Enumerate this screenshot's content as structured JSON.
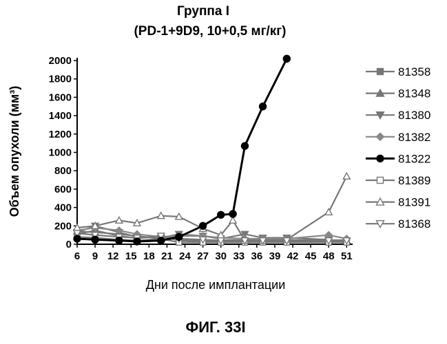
{
  "chart_data": {
    "type": "line",
    "title": "Группа I",
    "subtitle": "(PD-1+9D9, 10+0,5 мг/кг)",
    "xlabel": "Дни после имплантации",
    "ylabel": "Объем опухоли (мм³)",
    "figure_label": "ФИГ. 33I",
    "xlim": [
      6,
      52
    ],
    "ylim": [
      0,
      2000
    ],
    "x_ticks": [
      6,
      9,
      12,
      15,
      18,
      21,
      24,
      27,
      30,
      33,
      36,
      39,
      42,
      45,
      48,
      51
    ],
    "y_ticks": [
      0,
      200,
      400,
      600,
      800,
      1000,
      1200,
      1400,
      1600,
      1800,
      2000
    ],
    "grid": false,
    "legend_position": "right",
    "series": [
      {
        "name": "81358",
        "marker": "square",
        "filled": true,
        "color": "#777777",
        "x": [
          6,
          9,
          13,
          16,
          20,
          23,
          27,
          30,
          34,
          37,
          41,
          48,
          51
        ],
        "y": [
          110,
          150,
          90,
          65,
          85,
          40,
          30,
          30,
          30,
          30,
          30,
          30,
          30
        ]
      },
      {
        "name": "81348",
        "marker": "triangle-up",
        "filled": true,
        "color": "#777777",
        "x": [
          6,
          9,
          13,
          16,
          20,
          23,
          27,
          30,
          34,
          37,
          41,
          48,
          51
        ],
        "y": [
          140,
          130,
          110,
          90,
          60,
          55,
          45,
          45,
          45,
          45,
          45,
          45,
          45
        ]
      },
      {
        "name": "81380",
        "marker": "triangle-down",
        "filled": true,
        "color": "#777777",
        "x": [
          6,
          9,
          13,
          16,
          20,
          23,
          27,
          30,
          34,
          37,
          41,
          48,
          51
        ],
        "y": [
          130,
          200,
          130,
          80,
          70,
          110,
          90,
          60,
          110,
          70,
          70,
          50,
          30
        ]
      },
      {
        "name": "81382",
        "marker": "diamond",
        "filled": true,
        "color": "#888888",
        "x": [
          6,
          9,
          13,
          16,
          20,
          23,
          27,
          30,
          34,
          37,
          41,
          48,
          51
        ],
        "y": [
          150,
          180,
          150,
          110,
          80,
          90,
          90,
          70,
          60,
          60,
          60,
          100,
          60
        ]
      },
      {
        "name": "81322",
        "marker": "circle",
        "filled": true,
        "color": "#000000",
        "x": [
          6,
          9,
          13,
          16,
          20,
          23,
          27,
          30,
          32,
          34,
          37,
          41
        ],
        "y": [
          60,
          50,
          40,
          30,
          40,
          80,
          200,
          320,
          330,
          1070,
          1500,
          2020
        ]
      },
      {
        "name": "81389",
        "marker": "square",
        "filled": false,
        "color": "#777777",
        "x": [
          6,
          9,
          13,
          16,
          20,
          23,
          27,
          30,
          34,
          37,
          41,
          48,
          51
        ],
        "y": [
          80,
          70,
          50,
          40,
          60,
          20,
          20,
          20,
          20,
          20,
          20,
          20,
          20
        ]
      },
      {
        "name": "81391",
        "marker": "triangle-up",
        "filled": false,
        "color": "#777777",
        "x": [
          6,
          9,
          13,
          16,
          20,
          23,
          27,
          30,
          32,
          34,
          37,
          41,
          48,
          51
        ],
        "y": [
          180,
          200,
          260,
          230,
          310,
          300,
          170,
          100,
          260,
          40,
          40,
          50,
          350,
          740
        ]
      },
      {
        "name": "81368",
        "marker": "triangle-down",
        "filled": false,
        "color": "#777777",
        "x": [
          6,
          9,
          13,
          16,
          20,
          23,
          27,
          30,
          34,
          37,
          41,
          48,
          51
        ],
        "y": [
          120,
          100,
          80,
          70,
          90,
          60,
          50,
          40,
          40,
          40,
          40,
          40,
          40
        ]
      }
    ]
  }
}
